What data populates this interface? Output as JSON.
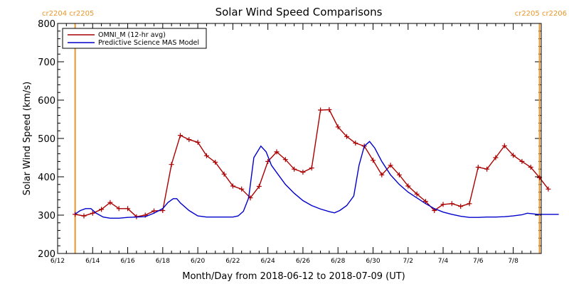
{
  "chart_data": {
    "type": "line",
    "title": "Solar Wind Speed Comparisons",
    "xlabel": "Month/Day from 2018-06-12 to 2018-07-09 (UT)",
    "ylabel": "Solar Wind Speed (km/s)",
    "ylim": [
      200,
      800
    ],
    "xlim_days": [
      0,
      27.6
    ],
    "y_ticks": [
      200,
      300,
      400,
      500,
      600,
      700,
      800
    ],
    "x_ticks": [
      {
        "day": 0,
        "label": "6/12"
      },
      {
        "day": 2,
        "label": "6/14"
      },
      {
        "day": 4,
        "label": "6/16"
      },
      {
        "day": 6,
        "label": "6/18"
      },
      {
        "day": 8,
        "label": "6/20"
      },
      {
        "day": 10,
        "label": "6/22"
      },
      {
        "day": 12,
        "label": "6/24"
      },
      {
        "day": 14,
        "label": "6/26"
      },
      {
        "day": 16,
        "label": "6/28"
      },
      {
        "day": 18,
        "label": "6/30"
      },
      {
        "day": 20,
        "label": "7/2"
      },
      {
        "day": 22,
        "label": "7/4"
      },
      {
        "day": 24,
        "label": "7/6"
      },
      {
        "day": 26,
        "label": "7/8"
      }
    ],
    "carrington_markers": [
      {
        "day": 1.0,
        "label": "cr2204 cr2205",
        "side": "left"
      },
      {
        "day": 27.5,
        "label": "cr2205 cr2206",
        "side": "right"
      }
    ],
    "legend_position": "top-left",
    "series": [
      {
        "name": "OMNI_M (12-hr avg)",
        "color": "#aa0000",
        "marker": "plus",
        "points": [
          [
            1.0,
            302
          ],
          [
            1.5,
            298
          ],
          [
            2.0,
            305
          ],
          [
            2.5,
            315
          ],
          [
            3.0,
            333
          ],
          [
            3.5,
            317
          ],
          [
            4.0,
            317
          ],
          [
            4.5,
            296
          ],
          [
            5.0,
            300
          ],
          [
            5.5,
            311
          ],
          [
            6.0,
            312
          ],
          [
            6.5,
            432
          ],
          [
            7.0,
            508
          ],
          [
            7.5,
            497
          ],
          [
            8.0,
            490
          ],
          [
            8.5,
            455
          ],
          [
            9.0,
            438
          ],
          [
            9.5,
            407
          ],
          [
            10.0,
            376
          ],
          [
            10.5,
            368
          ],
          [
            11.0,
            345
          ],
          [
            11.5,
            375
          ],
          [
            12.0,
            440
          ],
          [
            12.5,
            465
          ],
          [
            13.0,
            445
          ],
          [
            13.5,
            420
          ],
          [
            14.0,
            412
          ],
          [
            14.5,
            423
          ],
          [
            15.0,
            574
          ],
          [
            15.5,
            575
          ],
          [
            16.0,
            530
          ],
          [
            16.5,
            505
          ],
          [
            17.0,
            488
          ],
          [
            17.5,
            480
          ],
          [
            18.0,
            443
          ],
          [
            18.5,
            405
          ],
          [
            19.0,
            430
          ],
          [
            19.5,
            405
          ],
          [
            20.0,
            376
          ],
          [
            20.5,
            355
          ],
          [
            21.0,
            336
          ],
          [
            21.5,
            312
          ],
          [
            22.0,
            328
          ],
          [
            22.5,
            330
          ],
          [
            23.0,
            323
          ],
          [
            23.5,
            330
          ],
          [
            24.0,
            425
          ],
          [
            24.5,
            420
          ],
          [
            25.0,
            450
          ],
          [
            25.5,
            481
          ],
          [
            26.0,
            456
          ],
          [
            26.5,
            440
          ],
          [
            27.0,
            425
          ],
          [
            27.5,
            398
          ],
          [
            28.0,
            368
          ]
        ]
      },
      {
        "name": "Predictive Science MAS Model",
        "color": "#0000cc",
        "marker": "none",
        "points": [
          [
            1.0,
            303
          ],
          [
            1.3,
            312
          ],
          [
            1.6,
            317
          ],
          [
            1.9,
            317
          ],
          [
            2.2,
            305
          ],
          [
            2.6,
            295
          ],
          [
            3.0,
            292
          ],
          [
            3.5,
            292
          ],
          [
            4.0,
            294
          ],
          [
            4.5,
            295
          ],
          [
            5.0,
            296
          ],
          [
            5.5,
            305
          ],
          [
            6.0,
            317
          ],
          [
            6.3,
            333
          ],
          [
            6.6,
            343
          ],
          [
            6.8,
            343
          ],
          [
            7.0,
            332
          ],
          [
            7.5,
            312
          ],
          [
            8.0,
            298
          ],
          [
            8.5,
            295
          ],
          [
            9.0,
            295
          ],
          [
            9.5,
            295
          ],
          [
            10.0,
            295
          ],
          [
            10.3,
            298
          ],
          [
            10.6,
            310
          ],
          [
            10.9,
            345
          ],
          [
            11.2,
            450
          ],
          [
            11.6,
            480
          ],
          [
            11.9,
            465
          ],
          [
            12.2,
            430
          ],
          [
            12.6,
            405
          ],
          [
            13.0,
            380
          ],
          [
            13.5,
            357
          ],
          [
            14.0,
            338
          ],
          [
            14.5,
            325
          ],
          [
            15.0,
            316
          ],
          [
            15.5,
            309
          ],
          [
            15.8,
            306
          ],
          [
            16.1,
            312
          ],
          [
            16.5,
            325
          ],
          [
            16.9,
            350
          ],
          [
            17.2,
            430
          ],
          [
            17.5,
            480
          ],
          [
            17.8,
            492
          ],
          [
            18.1,
            475
          ],
          [
            18.5,
            440
          ],
          [
            19.0,
            405
          ],
          [
            19.5,
            380
          ],
          [
            20.0,
            360
          ],
          [
            20.5,
            345
          ],
          [
            21.0,
            330
          ],
          [
            21.5,
            317
          ],
          [
            22.0,
            308
          ],
          [
            22.5,
            302
          ],
          [
            23.0,
            297
          ],
          [
            23.5,
            294
          ],
          [
            24.0,
            294
          ],
          [
            24.5,
            295
          ],
          [
            25.0,
            295
          ],
          [
            25.5,
            296
          ],
          [
            26.0,
            298
          ],
          [
            26.5,
            301
          ],
          [
            26.8,
            305
          ],
          [
            27.0,
            304
          ],
          [
            27.4,
            302
          ],
          [
            28.0,
            302
          ],
          [
            28.6,
            302
          ]
        ]
      }
    ]
  }
}
